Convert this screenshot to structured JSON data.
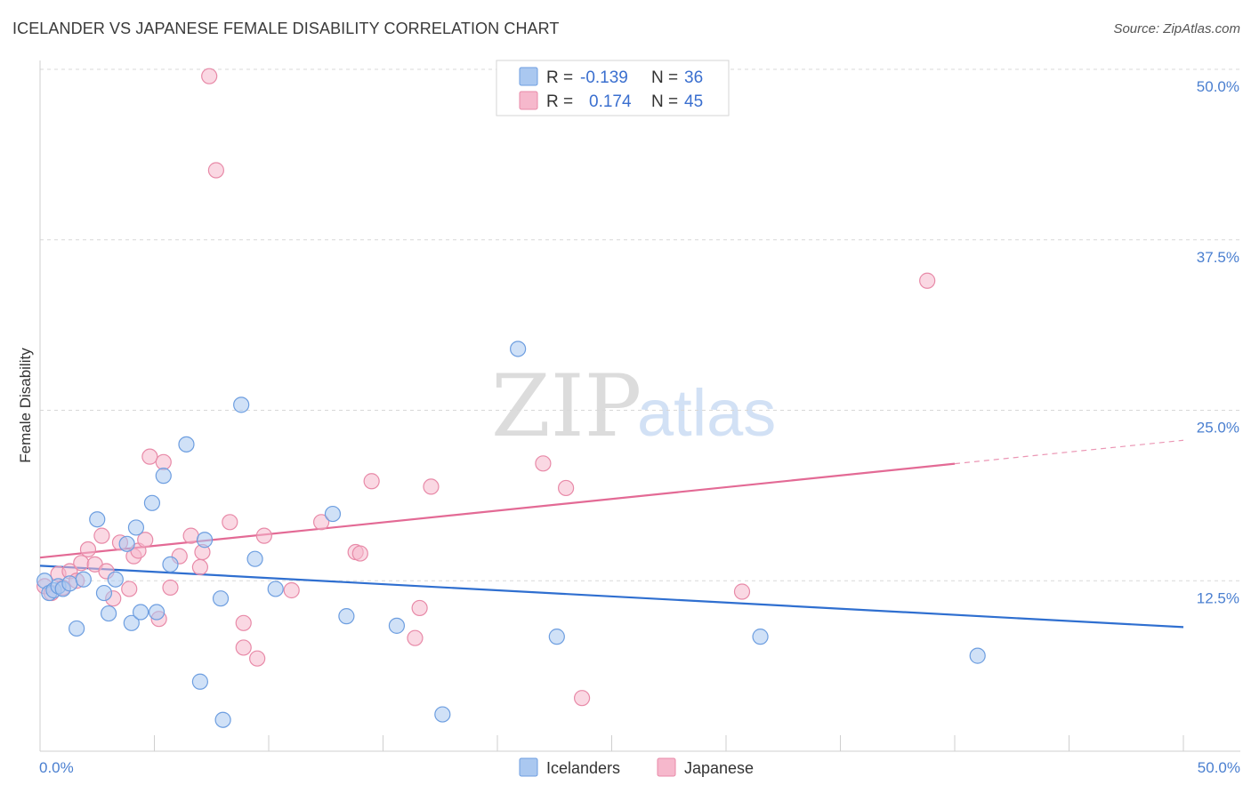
{
  "title": "ICELANDER VS JAPANESE FEMALE DISABILITY CORRELATION CHART",
  "source": "Source: ZipAtlas.com",
  "watermark": {
    "zip": "ZIP",
    "atlas": "atlas"
  },
  "colors": {
    "blue_fill": "#aac8f0",
    "blue_stroke": "#6d9ee0",
    "blue_line": "#2f6fd0",
    "pink_fill": "#f6b8cc",
    "pink_stroke": "#e88aa8",
    "pink_line": "#e36a95",
    "grid": "#d8d8d8",
    "axis_label": "#4a7fd0"
  },
  "legend": {
    "rows": [
      {
        "r_label": "R =",
        "r_value": "-0.139",
        "n_label": "N =",
        "n_value": "36",
        "series": "Icelanders"
      },
      {
        "r_label": "R =",
        "r_value": "0.174",
        "n_label": "N =",
        "n_value": "45",
        "series": "Japanese"
      }
    ]
  },
  "chart_data": {
    "type": "scatter",
    "title": "ICELANDER VS JAPANESE FEMALE DISABILITY CORRELATION CHART",
    "xlabel": "",
    "ylabel": "Female Disability",
    "xlim": [
      0,
      50
    ],
    "ylim": [
      0,
      50
    ],
    "x_tick_labels": [
      "0.0%",
      "50.0%"
    ],
    "y_ticks": [
      12.5,
      25.0,
      37.5,
      50.0
    ],
    "y_tick_labels": [
      "12.5%",
      "25.0%",
      "37.5%",
      "50.0%"
    ],
    "grid": true,
    "legend_position": "top-center",
    "series": [
      {
        "name": "Icelanders",
        "color": "#aac8f0",
        "R": -0.139,
        "N": 36,
        "trend": {
          "x": [
            0,
            50
          ],
          "y": [
            13.6,
            9.1
          ],
          "solid_until": 50
        },
        "points": [
          [
            0.2,
            12.5
          ],
          [
            0.4,
            11.6
          ],
          [
            0.6,
            11.8
          ],
          [
            0.8,
            12.1
          ],
          [
            1.0,
            11.9
          ],
          [
            1.3,
            12.3
          ],
          [
            1.6,
            9.0
          ],
          [
            1.9,
            12.6
          ],
          [
            2.5,
            17.0
          ],
          [
            2.8,
            11.6
          ],
          [
            3.0,
            10.1
          ],
          [
            3.3,
            12.6
          ],
          [
            3.8,
            15.2
          ],
          [
            4.0,
            9.4
          ],
          [
            4.2,
            16.4
          ],
          [
            4.4,
            10.2
          ],
          [
            4.9,
            18.2
          ],
          [
            5.1,
            10.2
          ],
          [
            5.4,
            20.2
          ],
          [
            5.7,
            13.7
          ],
          [
            6.4,
            22.5
          ],
          [
            7.0,
            5.1
          ],
          [
            7.2,
            15.5
          ],
          [
            7.9,
            11.2
          ],
          [
            8.0,
            2.3
          ],
          [
            8.8,
            25.4
          ],
          [
            9.4,
            14.1
          ],
          [
            10.3,
            11.9
          ],
          [
            12.8,
            17.4
          ],
          [
            13.4,
            9.9
          ],
          [
            15.6,
            9.2
          ],
          [
            17.6,
            2.7
          ],
          [
            20.9,
            29.5
          ],
          [
            22.6,
            8.4
          ],
          [
            31.5,
            8.4
          ],
          [
            41.0,
            7.0
          ]
        ]
      },
      {
        "name": "Japanese",
        "color": "#f6b8cc",
        "R": 0.174,
        "N": 45,
        "trend": {
          "x": [
            0,
            50
          ],
          "y": [
            14.2,
            22.8
          ],
          "solid_until": 40
        },
        "points": [
          [
            0.2,
            12.1
          ],
          [
            0.5,
            11.6
          ],
          [
            0.8,
            13.0
          ],
          [
            1.0,
            12.0
          ],
          [
            1.3,
            13.2
          ],
          [
            1.6,
            12.5
          ],
          [
            1.8,
            13.8
          ],
          [
            2.1,
            14.8
          ],
          [
            2.4,
            13.7
          ],
          [
            2.7,
            15.8
          ],
          [
            2.9,
            13.2
          ],
          [
            3.2,
            11.2
          ],
          [
            3.5,
            15.3
          ],
          [
            3.9,
            11.9
          ],
          [
            4.1,
            14.3
          ],
          [
            4.3,
            14.7
          ],
          [
            4.6,
            15.5
          ],
          [
            4.8,
            21.6
          ],
          [
            5.2,
            9.7
          ],
          [
            5.4,
            21.2
          ],
          [
            5.7,
            12.0
          ],
          [
            6.1,
            14.3
          ],
          [
            6.6,
            15.8
          ],
          [
            7.0,
            13.5
          ],
          [
            7.1,
            14.6
          ],
          [
            7.4,
            49.5
          ],
          [
            7.7,
            42.6
          ],
          [
            8.3,
            16.8
          ],
          [
            8.9,
            9.4
          ],
          [
            8.9,
            7.6
          ],
          [
            9.5,
            6.8
          ],
          [
            9.8,
            15.8
          ],
          [
            11.0,
            11.8
          ],
          [
            12.3,
            16.8
          ],
          [
            13.8,
            14.6
          ],
          [
            14.0,
            14.5
          ],
          [
            14.5,
            19.8
          ],
          [
            16.4,
            8.3
          ],
          [
            16.6,
            10.5
          ],
          [
            17.1,
            19.4
          ],
          [
            22.0,
            21.1
          ],
          [
            23.0,
            19.3
          ],
          [
            23.7,
            3.9
          ],
          [
            30.7,
            11.7
          ],
          [
            38.8,
            34.5
          ]
        ]
      }
    ]
  }
}
